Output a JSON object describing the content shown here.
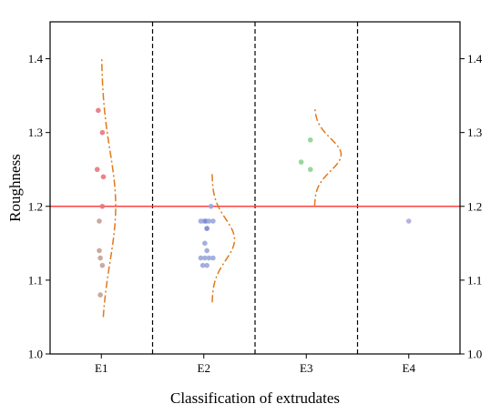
{
  "chart_data": {
    "type": "scatter",
    "xlabel": "Classification of extrudates",
    "ylabel": "Roughness",
    "categories": [
      "E1",
      "E2",
      "E3",
      "E4"
    ],
    "ylim": [
      1.0,
      1.45
    ],
    "yticks": [
      "1.0",
      "1.1",
      "1.2",
      "1.3",
      "1.4"
    ],
    "reference_line": {
      "y": 1.2,
      "color": "#ff4040"
    },
    "separators": "dashed vertical lines between categories",
    "grid": false,
    "series": [
      {
        "category": "E1",
        "points": [
          {
            "y": 1.33,
            "color": "#e8757a",
            "offset": 0
          },
          {
            "y": 1.3,
            "color": "#e8757a",
            "offset": 0.04
          },
          {
            "y": 1.25,
            "color": "#e8757a",
            "offset": -0.01
          },
          {
            "y": 1.24,
            "color": "#e8757a",
            "offset": 0.05
          },
          {
            "y": 1.2,
            "color": "#e8757a",
            "offset": 0.04
          },
          {
            "y": 1.18,
            "color": "#c4a093",
            "offset": 0.01
          },
          {
            "y": 1.14,
            "color": "#c4a093",
            "offset": 0.01
          },
          {
            "y": 1.13,
            "color": "#c4a093",
            "offset": 0.02
          },
          {
            "y": 1.12,
            "color": "#c4a093",
            "offset": 0.04
          },
          {
            "y": 1.08,
            "color": "#c4a093",
            "offset": 0.02
          }
        ],
        "density": {
          "y_range": [
            1.05,
            1.4
          ],
          "peak_y": 1.2,
          "spread": 0.075,
          "width": 0.14
        }
      },
      {
        "category": "E2",
        "points": [
          {
            "y": 1.2,
            "color": "#9aa6db",
            "offset": 0.1
          },
          {
            "y": 1.18,
            "color": "#9aa6db",
            "offset": 0.0
          },
          {
            "y": 1.18,
            "color": "#9aa6db",
            "offset": 0.03
          },
          {
            "y": 1.18,
            "color": "#7a86cf",
            "offset": 0.05
          },
          {
            "y": 1.18,
            "color": "#9aa6db",
            "offset": 0.08
          },
          {
            "y": 1.18,
            "color": "#9aa6db",
            "offset": 0.12
          },
          {
            "y": 1.17,
            "color": "#7a86cf",
            "offset": 0.06
          },
          {
            "y": 1.15,
            "color": "#9aa6db",
            "offset": 0.04
          },
          {
            "y": 1.14,
            "color": "#9aa6db",
            "offset": 0.06
          },
          {
            "y": 1.13,
            "color": "#9aa6db",
            "offset": 0.0
          },
          {
            "y": 1.13,
            "color": "#9aa6db",
            "offset": 0.04
          },
          {
            "y": 1.13,
            "color": "#9aa6db",
            "offset": 0.08
          },
          {
            "y": 1.13,
            "color": "#9aa6db",
            "offset": 0.12
          },
          {
            "y": 1.12,
            "color": "#9aa6db",
            "offset": 0.02
          },
          {
            "y": 1.12,
            "color": "#9aa6db",
            "offset": 0.06
          }
        ],
        "density": {
          "y_range": [
            1.07,
            1.245
          ],
          "peak_y": 1.155,
          "spread": 0.028,
          "width": 0.22
        }
      },
      {
        "category": "E3",
        "points": [
          {
            "y": 1.29,
            "color": "#8ed391",
            "offset": 0.07
          },
          {
            "y": 1.26,
            "color": "#8ed391",
            "offset": -0.02
          },
          {
            "y": 1.25,
            "color": "#8ed391",
            "offset": 0.07
          }
        ],
        "density": {
          "y_range": [
            1.2,
            1.335
          ],
          "peak_y": 1.27,
          "spread": 0.022,
          "width": 0.26
        }
      },
      {
        "category": "E4",
        "points": [
          {
            "y": 1.18,
            "color": "#b5a6d6",
            "offset": 0
          }
        ],
        "density": null
      }
    ]
  }
}
